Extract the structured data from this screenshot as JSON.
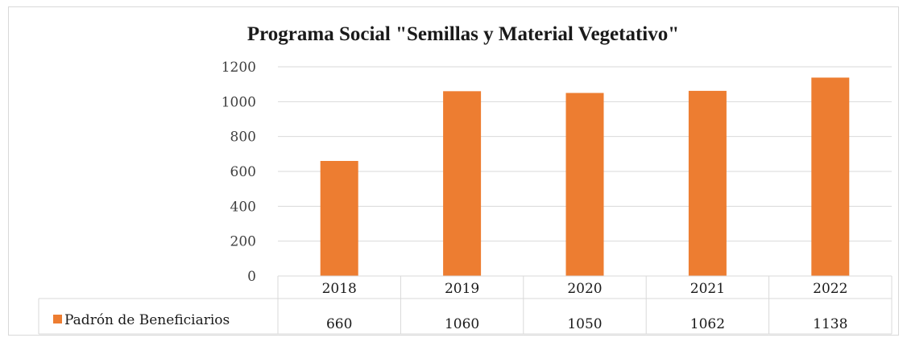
{
  "chart_data": {
    "type": "bar",
    "title": "Programa Social \"Semillas y Material Vegetativo\"",
    "categories": [
      "2018",
      "2019",
      "2020",
      "2021",
      "2022"
    ],
    "series": [
      {
        "name": "Padrón de Beneficiarios",
        "values": [
          660,
          1060,
          1050,
          1062,
          1138
        ],
        "color": "#ED7D31"
      }
    ],
    "ylim": [
      0,
      1200
    ],
    "yticks": [
      "0",
      "200",
      "400",
      "600",
      "800",
      "1000",
      "1200"
    ],
    "grid": true,
    "data_table": true,
    "legend": "data-table-row"
  }
}
